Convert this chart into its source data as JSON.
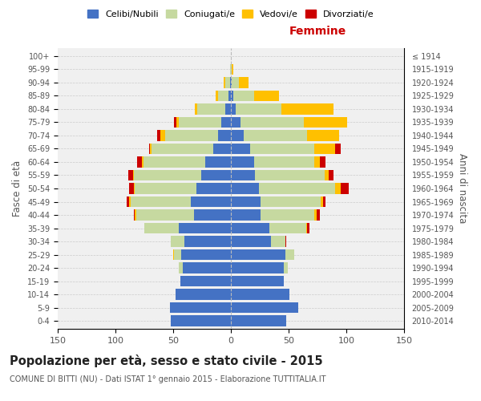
{
  "age_groups": [
    "0-4",
    "5-9",
    "10-14",
    "15-19",
    "20-24",
    "25-29",
    "30-34",
    "35-39",
    "40-44",
    "45-49",
    "50-54",
    "55-59",
    "60-64",
    "65-69",
    "70-74",
    "75-79",
    "80-84",
    "85-89",
    "90-94",
    "95-99",
    "100+"
  ],
  "birth_years": [
    "2010-2014",
    "2005-2009",
    "2000-2004",
    "1995-1999",
    "1990-1994",
    "1985-1989",
    "1980-1984",
    "1975-1979",
    "1970-1974",
    "1965-1969",
    "1960-1964",
    "1955-1959",
    "1950-1954",
    "1945-1949",
    "1940-1944",
    "1935-1939",
    "1930-1934",
    "1925-1929",
    "1920-1924",
    "1915-1919",
    "≤ 1914"
  ],
  "male": {
    "celibi": [
      52,
      53,
      48,
      44,
      42,
      43,
      40,
      45,
      32,
      35,
      30,
      26,
      22,
      15,
      11,
      8,
      5,
      2,
      1,
      0,
      0
    ],
    "coniugati": [
      0,
      0,
      0,
      0,
      3,
      6,
      12,
      30,
      50,
      52,
      53,
      58,
      54,
      54,
      46,
      37,
      24,
      9,
      4,
      1,
      0
    ],
    "vedovi": [
      0,
      0,
      0,
      0,
      0,
      1,
      0,
      0,
      1,
      1,
      1,
      1,
      1,
      1,
      4,
      2,
      2,
      2,
      1,
      0,
      0
    ],
    "divorziati": [
      0,
      0,
      0,
      0,
      0,
      0,
      0,
      0,
      1,
      2,
      4,
      4,
      4,
      1,
      3,
      2,
      0,
      0,
      0,
      0,
      0
    ]
  },
  "female": {
    "nubili": [
      48,
      58,
      51,
      46,
      46,
      47,
      35,
      33,
      26,
      26,
      24,
      21,
      20,
      17,
      11,
      8,
      4,
      2,
      1,
      0,
      0
    ],
    "coniugate": [
      0,
      0,
      0,
      0,
      3,
      8,
      12,
      32,
      46,
      52,
      66,
      60,
      52,
      55,
      55,
      55,
      40,
      18,
      6,
      1,
      0
    ],
    "vedove": [
      0,
      0,
      0,
      0,
      0,
      0,
      0,
      1,
      2,
      2,
      5,
      4,
      5,
      18,
      28,
      38,
      45,
      22,
      8,
      1,
      0
    ],
    "divorziate": [
      0,
      0,
      0,
      0,
      0,
      0,
      1,
      2,
      3,
      2,
      7,
      4,
      5,
      5,
      0,
      0,
      0,
      0,
      0,
      0,
      0
    ]
  },
  "colors": {
    "celibi": "#4472c4",
    "coniugati": "#c6d9a0",
    "vedovi": "#ffc000",
    "divorziati": "#cc0000"
  },
  "legend_labels": [
    "Celibi/Nubili",
    "Coniugati/e",
    "Vedovi/e",
    "Divorziati/e"
  ],
  "title": "Popolazione per età, sesso e stato civile - 2015",
  "subtitle": "COMUNE DI BITTI (NU) - Dati ISTAT 1° gennaio 2015 - Elaborazione TUTTITALIA.IT",
  "xlabel_right": "Femmine",
  "ylabel_left": "Fasce di età",
  "ylabel_right": "Anni di nascita",
  "xlim": 150,
  "background_color": "#ffffff",
  "bar_height": 0.8
}
